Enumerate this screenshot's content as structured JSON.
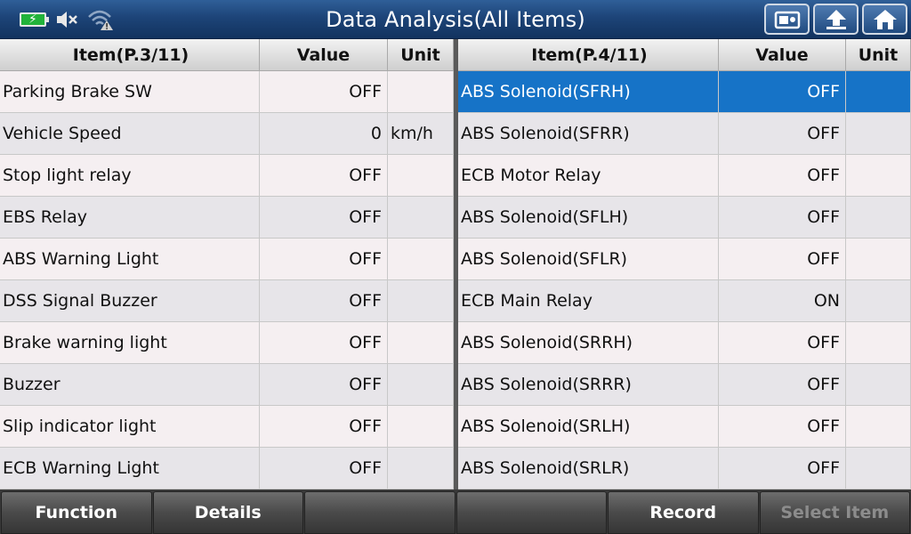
{
  "title": "Data Analysis(All Items)",
  "status_icons": [
    "battery-charging-icon",
    "speaker-muted-icon",
    "wifi-warning-icon"
  ],
  "nav_buttons": [
    "screenshot-icon",
    "back-icon",
    "home-icon"
  ],
  "left_table": {
    "headers": {
      "item": "Item(P.3/11)",
      "value": "Value",
      "unit": "Unit"
    },
    "rows": [
      {
        "item": "Parking Brake SW",
        "value": "OFF",
        "unit": ""
      },
      {
        "item": "Vehicle Speed",
        "value": "0",
        "unit": "km/h"
      },
      {
        "item": "Stop light relay",
        "value": "OFF",
        "unit": ""
      },
      {
        "item": "EBS Relay",
        "value": "OFF",
        "unit": ""
      },
      {
        "item": "ABS Warning Light",
        "value": "OFF",
        "unit": ""
      },
      {
        "item": "DSS Signal Buzzer",
        "value": "OFF",
        "unit": ""
      },
      {
        "item": "Brake warning light",
        "value": "OFF",
        "unit": ""
      },
      {
        "item": "Buzzer",
        "value": "OFF",
        "unit": ""
      },
      {
        "item": "Slip indicator light",
        "value": "OFF",
        "unit": ""
      },
      {
        "item": "ECB Warning Light",
        "value": "OFF",
        "unit": ""
      }
    ]
  },
  "right_table": {
    "headers": {
      "item": "Item(P.4/11)",
      "value": "Value",
      "unit": "Unit"
    },
    "rows": [
      {
        "item": "ABS Solenoid(SFRH)",
        "value": "OFF",
        "unit": ""
      },
      {
        "item": "ABS Solenoid(SFRR)",
        "value": "OFF",
        "unit": ""
      },
      {
        "item": "ECB Motor Relay",
        "value": "OFF",
        "unit": ""
      },
      {
        "item": "ABS Solenoid(SFLH)",
        "value": "OFF",
        "unit": ""
      },
      {
        "item": "ABS Solenoid(SFLR)",
        "value": "OFF",
        "unit": ""
      },
      {
        "item": "ECB Main Relay",
        "value": "ON",
        "unit": ""
      },
      {
        "item": "ABS Solenoid(SRRH)",
        "value": "OFF",
        "unit": ""
      },
      {
        "item": "ABS Solenoid(SRRR)",
        "value": "OFF",
        "unit": ""
      },
      {
        "item": "ABS Solenoid(SRLH)",
        "value": "OFF",
        "unit": ""
      },
      {
        "item": "ABS Solenoid(SRLR)",
        "value": "OFF",
        "unit": ""
      }
    ],
    "selected_index": 0
  },
  "bottom_buttons": [
    {
      "label": "Function",
      "enabled": true
    },
    {
      "label": "Details",
      "enabled": true
    },
    {
      "label": "",
      "enabled": true
    },
    {
      "label": "",
      "enabled": true
    },
    {
      "label": "Record",
      "enabled": true
    },
    {
      "label": "Select Item",
      "enabled": false
    }
  ],
  "colors": {
    "selected_row": "#1673c7",
    "title_bar": "#1d4478",
    "battery": "#22b33a"
  }
}
